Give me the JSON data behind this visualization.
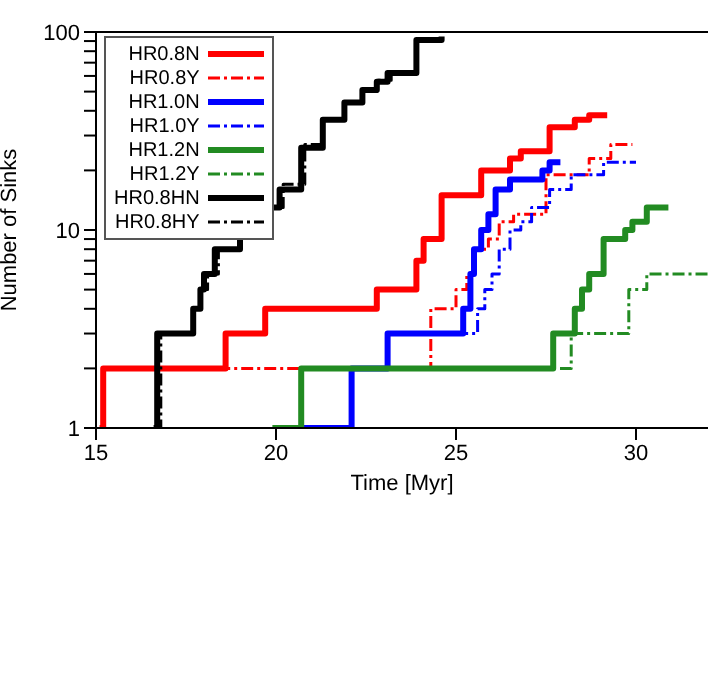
{
  "chart_data": {
    "type": "step",
    "xlabel": "Time [Myr]",
    "ylabel": "Number of Sinks",
    "log": "y",
    "xlim": [
      15,
      32
    ],
    "xticks": [
      15,
      20,
      25,
      30
    ],
    "ylim": [
      1,
      100
    ],
    "yticks": [
      1,
      {
        "value": 2,
        "label": null
      },
      {
        "value": 3,
        "label": null
      },
      {
        "value": 4,
        "label": null
      },
      {
        "value": 5,
        "label": null
      },
      {
        "value": 6,
        "label": null
      },
      {
        "value": 7,
        "label": null
      },
      {
        "value": 8,
        "label": null
      },
      {
        "value": 9,
        "label": null
      },
      10,
      {
        "value": 20,
        "label": null
      },
      {
        "value": 30,
        "label": null
      },
      {
        "value": 40,
        "label": null
      },
      {
        "value": 50,
        "label": null
      },
      {
        "value": 60,
        "label": null
      },
      {
        "value": 70,
        "label": null
      },
      {
        "value": 80,
        "label": null
      },
      {
        "value": 90,
        "label": null
      },
      100
    ],
    "legend": "top left",
    "marker": "none",
    "series": [
      {
        "name": "HR0.8N",
        "color": "#ff0000",
        "line_style": "solid",
        "x": [
          15.1,
          15.2,
          18.6,
          19.7,
          22.8,
          23.9,
          24.1,
          24.6,
          25.7,
          26.5,
          26.8,
          27.6,
          28.3,
          28.7,
          29.2
        ],
        "values": [
          1,
          2,
          3,
          4,
          5,
          7,
          9,
          15,
          20,
          23,
          25,
          33,
          36,
          38,
          38
        ]
      },
      {
        "name": "HR0.8Y",
        "color": "#ff0000",
        "line_style": "dashed",
        "x": [
          15.2,
          24.3,
          25.0,
          25.3,
          25.5,
          25.9,
          26.2,
          26.6,
          27.5,
          28.7,
          29.3,
          29.9
        ],
        "values": [
          2,
          4,
          5,
          6,
          8,
          9,
          11,
          12,
          19,
          23,
          27,
          27
        ]
      },
      {
        "name": "HR1.0N",
        "color": "#0000ff",
        "line_style": "solid",
        "x": [
          20.6,
          22.1,
          23.1,
          25.2,
          25.4,
          25.5,
          25.7,
          25.9,
          26.1,
          26.5,
          27.4,
          27.6,
          27.9
        ],
        "values": [
          1,
          2,
          3,
          4,
          6,
          8,
          10,
          12,
          16,
          18,
          20,
          22,
          22
        ]
      },
      {
        "name": "HR1.0Y",
        "color": "#0000ff",
        "line_style": "dashed",
        "x": [
          20.6,
          22.1,
          23.1,
          25.6,
          25.8,
          26.0,
          26.2,
          26.5,
          26.8,
          27.1,
          27.6,
          28.2,
          29.1,
          30.0
        ],
        "values": [
          1,
          2,
          3,
          4,
          5,
          6,
          8,
          10,
          11,
          13,
          16,
          19,
          22,
          22
        ]
      },
      {
        "name": "HR1.2N",
        "color": "#228b22",
        "line_style": "solid",
        "x": [
          19.9,
          20.7,
          27.7,
          28.3,
          28.5,
          28.7,
          29.1,
          29.7,
          29.9,
          30.3,
          30.9
        ],
        "values": [
          1,
          2,
          3,
          4,
          5,
          6,
          9,
          10,
          11,
          13,
          13
        ]
      },
      {
        "name": "HR1.2Y",
        "color": "#228b22",
        "line_style": "dashed",
        "x": [
          20.6,
          20.7,
          28.2,
          29.8,
          30.3,
          32.0
        ],
        "values": [
          1,
          2,
          3,
          5,
          6,
          6
        ]
      },
      {
        "name": "HR0.8HN",
        "color": "#000000",
        "line_style": "solid",
        "x": [
          16.6,
          16.7,
          17.7,
          17.9,
          18.0,
          18.3,
          19.0,
          19.2,
          19.4,
          20.1,
          20.7,
          21.3,
          21.9,
          22.4,
          22.8,
          23.1,
          23.9,
          24.6
        ],
        "values": [
          1,
          3,
          4,
          5,
          6,
          8,
          10,
          11,
          13,
          16,
          26,
          36,
          44,
          51,
          56,
          62,
          91,
          95
        ]
      },
      {
        "name": "HR0.8HY",
        "color": "#000000",
        "line_style": "dashed",
        "x": [
          16.7,
          16.8,
          17.7,
          17.9,
          18.1,
          18.4,
          19.0,
          19.3,
          19.5,
          20.2,
          20.8,
          21.3,
          21.9,
          22.4,
          22.8,
          23.2,
          23.9,
          24.5
        ],
        "values": [
          1,
          3,
          4,
          5,
          6,
          8,
          10,
          11,
          13,
          17,
          27,
          36,
          44,
          50,
          57,
          63,
          90,
          94
        ]
      }
    ]
  }
}
